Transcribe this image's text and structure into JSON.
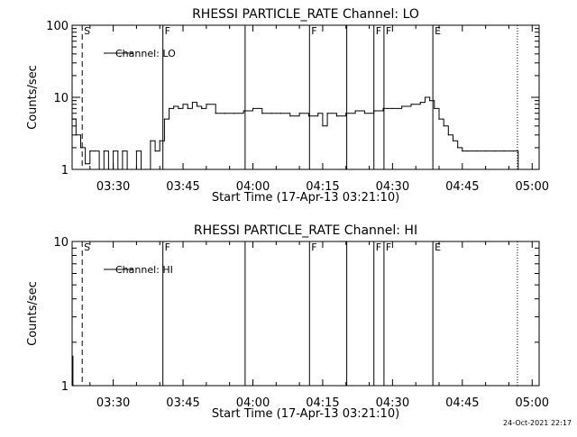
{
  "chart_data": [
    {
      "type": "line",
      "title": "RHESSI PARTICLE_RATE Channel: LO",
      "xlabel": "Start Time (17-Apr-13 03:21:10)",
      "ylabel": "Counts/sec",
      "y_scale": "log",
      "ylim": [
        1,
        100
      ],
      "y_ticks": [
        {
          "v": 1,
          "label": "1"
        },
        {
          "v": 10,
          "label": "10"
        },
        {
          "v": 100,
          "label": "100"
        }
      ],
      "xlim": [
        "03:21:10",
        "05:01:30"
      ],
      "x_ticks": [
        "03:30",
        "03:45",
        "04:00",
        "04:15",
        "04:30",
        "04:45",
        "05:00"
      ],
      "legend": "Channel: LO",
      "series": [
        {
          "name": "Channel: LO",
          "x": [
            "03:21:10",
            "03:22:00",
            "03:23:00",
            "03:24:00",
            "03:25:00",
            "03:26:00",
            "03:27:00",
            "03:28:00",
            "03:29:00",
            "03:30:00",
            "03:31:00",
            "03:32:00",
            "03:33:00",
            "03:34:00",
            "03:35:00",
            "03:36:00",
            "03:37:00",
            "03:38:00",
            "03:39:00",
            "03:40:00",
            "03:41:00",
            "03:42:00",
            "03:43:00",
            "03:44:00",
            "03:45:00",
            "03:46:00",
            "03:47:00",
            "03:48:00",
            "03:49:00",
            "03:50:00",
            "03:52:00",
            "03:54:00",
            "03:56:00",
            "03:58:00",
            "04:00:00",
            "04:02:00",
            "04:04:00",
            "04:06:00",
            "04:08:00",
            "04:10:00",
            "04:12:00",
            "04:14:00",
            "04:15:00",
            "04:16:00",
            "04:18:00",
            "04:20:00",
            "04:22:00",
            "04:24:00",
            "04:26:00",
            "04:28:00",
            "04:30:00",
            "04:32:00",
            "04:34:00",
            "04:36:00",
            "04:37:00",
            "04:38:00",
            "04:39:00",
            "04:40:00",
            "04:41:00",
            "04:42:00",
            "04:43:00",
            "04:44:00",
            "04:45:00",
            "04:46:00",
            "04:48:00",
            "04:50:00",
            "04:52:00",
            "04:54:00",
            "04:56:00",
            "04:57:00"
          ],
          "y": [
            5,
            3,
            2,
            1.2,
            1.8,
            1.8,
            1,
            1.8,
            1,
            1.8,
            1,
            1.8,
            1,
            1,
            1.8,
            1,
            1,
            2.5,
            1.8,
            2.5,
            5,
            7,
            7.5,
            7,
            8,
            7,
            8.5,
            7.5,
            7,
            8,
            6,
            6,
            6,
            6.5,
            7,
            6,
            6,
            6,
            5.5,
            6,
            5.5,
            6,
            4,
            6,
            5.5,
            6,
            6.5,
            6,
            6.5,
            7,
            7,
            7.5,
            8,
            8.5,
            10,
            9,
            7,
            5,
            4,
            3,
            2.5,
            2,
            1.8,
            1.8,
            1.8,
            1.8,
            1.8,
            1.8,
            1.8,
            1
          ]
        }
      ],
      "vertical_markers": [
        {
          "time": "03:23:20",
          "style": "dashed",
          "label": "S"
        },
        {
          "time": "03:40:40",
          "style": "solid",
          "label": "F"
        },
        {
          "time": "03:58:20",
          "style": "solid",
          "label": ""
        },
        {
          "time": "04:12:10",
          "style": "solid",
          "label": "F"
        },
        {
          "time": "04:20:10",
          "style": "solid",
          "label": ""
        },
        {
          "time": "04:26:00",
          "style": "solid",
          "label": "F"
        },
        {
          "time": "04:28:10",
          "style": "solid",
          "label": "F"
        },
        {
          "time": "04:38:40",
          "style": "solid",
          "label": "E"
        },
        {
          "time": "04:56:50",
          "style": "dotted",
          "label": ""
        }
      ]
    },
    {
      "type": "line",
      "title": "RHESSI PARTICLE_RATE Channel: HI",
      "xlabel": "Start Time (17-Apr-13 03:21:10)",
      "ylabel": "Counts/sec",
      "y_scale": "log",
      "ylim": [
        1,
        10
      ],
      "y_ticks": [
        {
          "v": 1,
          "label": "1"
        },
        {
          "v": 10,
          "label": "10"
        }
      ],
      "xlim": [
        "03:21:10",
        "05:01:30"
      ],
      "x_ticks": [
        "03:30",
        "03:45",
        "04:00",
        "04:15",
        "04:30",
        "04:45",
        "05:00"
      ],
      "legend": "Channel: HI",
      "series": [
        {
          "name": "Channel: HI",
          "x": [
            "03:21:10",
            "03:21:20",
            "03:21:30"
          ],
          "y": [
            1.6,
            1,
            1
          ]
        }
      ],
      "vertical_markers": [
        {
          "time": "03:23:20",
          "style": "dashed",
          "label": "S"
        },
        {
          "time": "03:40:40",
          "style": "solid",
          "label": "F"
        },
        {
          "time": "03:58:20",
          "style": "solid",
          "label": ""
        },
        {
          "time": "04:12:10",
          "style": "solid",
          "label": "F"
        },
        {
          "time": "04:20:10",
          "style": "solid",
          "label": ""
        },
        {
          "time": "04:26:00",
          "style": "solid",
          "label": "F"
        },
        {
          "time": "04:28:10",
          "style": "solid",
          "label": "F"
        },
        {
          "time": "04:38:40",
          "style": "solid",
          "label": "E"
        },
        {
          "time": "04:56:50",
          "style": "dotted",
          "label": ""
        }
      ]
    }
  ],
  "footer": {
    "timestamp": "24-Oct-2021 22:17"
  }
}
